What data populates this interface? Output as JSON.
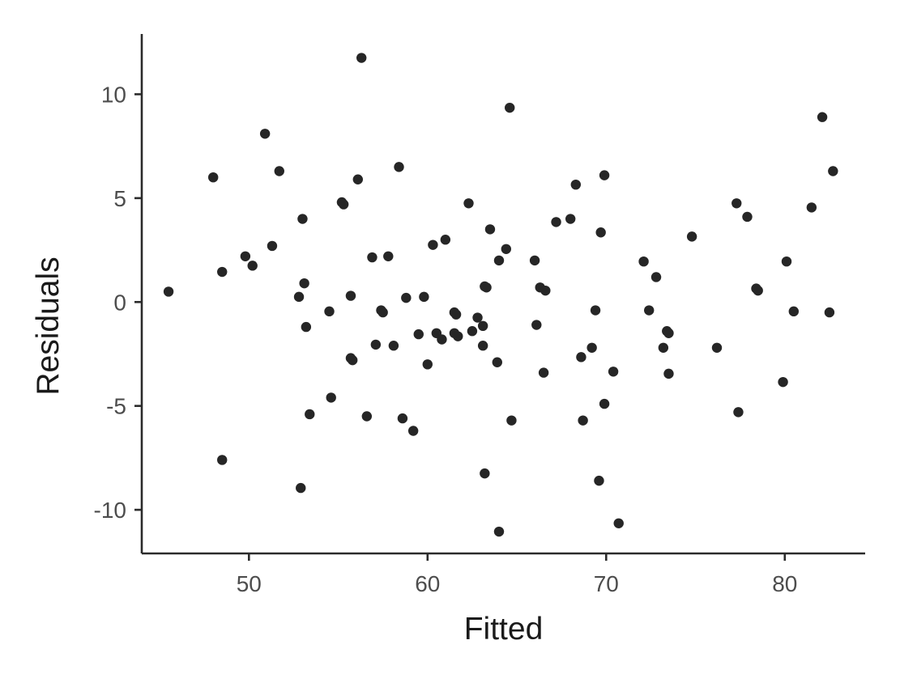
{
  "chart_data": {
    "type": "scatter",
    "title": "",
    "xlabel": "Fitted",
    "ylabel": "Residuals",
    "xlim": [
      44,
      84.5
    ],
    "ylim": [
      -12.1,
      12.9
    ],
    "x_ticks": [
      50,
      60,
      70,
      80
    ],
    "x_tick_labels": [
      "50",
      "60",
      "70",
      "80"
    ],
    "y_ticks": [
      -10,
      -5,
      0,
      5,
      10
    ],
    "y_tick_labels": [
      "-10",
      "-5",
      "0",
      "5",
      "10"
    ],
    "grid": false,
    "legend": "none",
    "point_color": "#262626",
    "points": [
      {
        "x": 45.5,
        "y": 0.5
      },
      {
        "x": 48.0,
        "y": 6.0
      },
      {
        "x": 48.5,
        "y": 1.45
      },
      {
        "x": 48.5,
        "y": -7.6
      },
      {
        "x": 49.8,
        "y": 2.2
      },
      {
        "x": 50.2,
        "y": 1.75
      },
      {
        "x": 50.9,
        "y": 8.1
      },
      {
        "x": 51.3,
        "y": 2.7
      },
      {
        "x": 51.7,
        "y": 6.3
      },
      {
        "x": 52.8,
        "y": 0.25
      },
      {
        "x": 52.9,
        "y": -8.95
      },
      {
        "x": 53.0,
        "y": 4.0
      },
      {
        "x": 53.1,
        "y": 0.9
      },
      {
        "x": 53.2,
        "y": -1.2
      },
      {
        "x": 53.4,
        "y": -5.4
      },
      {
        "x": 54.5,
        "y": -0.45
      },
      {
        "x": 54.6,
        "y": -4.6
      },
      {
        "x": 55.2,
        "y": 4.8
      },
      {
        "x": 55.3,
        "y": 4.7
      },
      {
        "x": 55.7,
        "y": 0.3
      },
      {
        "x": 55.7,
        "y": -2.7
      },
      {
        "x": 55.8,
        "y": -2.8
      },
      {
        "x": 56.1,
        "y": 5.9
      },
      {
        "x": 56.3,
        "y": 11.75
      },
      {
        "x": 56.6,
        "y": -5.5
      },
      {
        "x": 56.9,
        "y": 2.15
      },
      {
        "x": 57.1,
        "y": -2.05
      },
      {
        "x": 57.4,
        "y": -0.4
      },
      {
        "x": 57.5,
        "y": -0.5
      },
      {
        "x": 57.8,
        "y": 2.2
      },
      {
        "x": 58.1,
        "y": -2.1
      },
      {
        "x": 58.4,
        "y": 6.5
      },
      {
        "x": 58.6,
        "y": -5.6
      },
      {
        "x": 58.8,
        "y": 0.2
      },
      {
        "x": 59.2,
        "y": -6.2
      },
      {
        "x": 59.5,
        "y": -1.55
      },
      {
        "x": 59.8,
        "y": 0.25
      },
      {
        "x": 60.0,
        "y": -3.0
      },
      {
        "x": 60.3,
        "y": 2.75
      },
      {
        "x": 60.5,
        "y": -1.5
      },
      {
        "x": 60.8,
        "y": -1.8
      },
      {
        "x": 61.0,
        "y": 3.0
      },
      {
        "x": 61.5,
        "y": -0.5
      },
      {
        "x": 61.5,
        "y": -1.5
      },
      {
        "x": 61.6,
        "y": -0.6
      },
      {
        "x": 61.7,
        "y": -1.65
      },
      {
        "x": 62.3,
        "y": 4.75
      },
      {
        "x": 62.5,
        "y": -1.4
      },
      {
        "x": 62.8,
        "y": -0.75
      },
      {
        "x": 63.1,
        "y": -1.15
      },
      {
        "x": 63.1,
        "y": -2.1
      },
      {
        "x": 63.2,
        "y": -8.25
      },
      {
        "x": 63.2,
        "y": 0.75
      },
      {
        "x": 63.3,
        "y": 0.7
      },
      {
        "x": 63.5,
        "y": 3.5
      },
      {
        "x": 63.9,
        "y": -2.9
      },
      {
        "x": 64.0,
        "y": 2.0
      },
      {
        "x": 64.0,
        "y": -11.05
      },
      {
        "x": 64.4,
        "y": 2.55
      },
      {
        "x": 64.6,
        "y": 9.35
      },
      {
        "x": 64.7,
        "y": -5.7
      },
      {
        "x": 66.0,
        "y": 2.0
      },
      {
        "x": 66.1,
        "y": -1.1
      },
      {
        "x": 66.3,
        "y": 0.7
      },
      {
        "x": 66.5,
        "y": -3.4
      },
      {
        "x": 66.6,
        "y": 0.55
      },
      {
        "x": 67.2,
        "y": 3.85
      },
      {
        "x": 68.0,
        "y": 4.0
      },
      {
        "x": 68.3,
        "y": 5.65
      },
      {
        "x": 68.6,
        "y": -2.65
      },
      {
        "x": 68.7,
        "y": -5.7
      },
      {
        "x": 69.2,
        "y": -2.2
      },
      {
        "x": 69.4,
        "y": -0.4
      },
      {
        "x": 69.6,
        "y": -8.6
      },
      {
        "x": 69.7,
        "y": 3.35
      },
      {
        "x": 69.9,
        "y": 6.1
      },
      {
        "x": 69.9,
        "y": -4.9
      },
      {
        "x": 70.4,
        "y": -3.35
      },
      {
        "x": 70.7,
        "y": -10.65
      },
      {
        "x": 72.1,
        "y": 1.95
      },
      {
        "x": 72.4,
        "y": -0.4
      },
      {
        "x": 72.8,
        "y": 1.2
      },
      {
        "x": 73.2,
        "y": -2.2
      },
      {
        "x": 73.4,
        "y": -1.4
      },
      {
        "x": 73.5,
        "y": -1.5
      },
      {
        "x": 73.5,
        "y": -3.45
      },
      {
        "x": 74.8,
        "y": 3.15
      },
      {
        "x": 76.2,
        "y": -2.2
      },
      {
        "x": 77.3,
        "y": 4.75
      },
      {
        "x": 77.4,
        "y": -5.3
      },
      {
        "x": 77.9,
        "y": 4.1
      },
      {
        "x": 78.4,
        "y": 0.65
      },
      {
        "x": 78.5,
        "y": 0.55
      },
      {
        "x": 79.9,
        "y": -3.85
      },
      {
        "x": 80.1,
        "y": 1.95
      },
      {
        "x": 80.5,
        "y": -0.45
      },
      {
        "x": 81.5,
        "y": 4.55
      },
      {
        "x": 82.1,
        "y": 8.9
      },
      {
        "x": 82.5,
        "y": -0.5
      },
      {
        "x": 82.7,
        "y": 6.3
      }
    ]
  }
}
